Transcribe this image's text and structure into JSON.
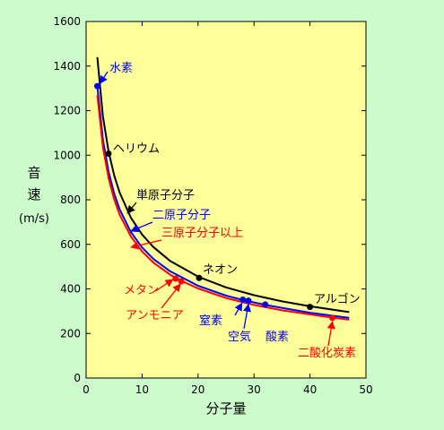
{
  "page": {
    "background": "#ccfccc"
  },
  "chart_data": {
    "type": "line",
    "xlabel": "分子量",
    "ylabel": [
      "音",
      "速",
      "(m/s)"
    ],
    "xlim": [
      0,
      50
    ],
    "ylim": [
      0,
      1600
    ],
    "xticks": [
      0,
      10,
      20,
      30,
      40,
      50
    ],
    "yticks": [
      0,
      200,
      400,
      600,
      800,
      1000,
      1200,
      1400,
      1600
    ],
    "plot_background": "#ffff99",
    "grid": false,
    "series": [
      {
        "name": "単原子分子",
        "color": "#000000",
        "x": [
          2,
          3,
          4,
          5,
          6,
          8,
          10,
          12,
          15,
          20,
          25,
          30,
          35,
          40,
          47
        ],
        "y": [
          1440,
          1175,
          1018,
          911,
          832,
          720,
          644,
          588,
          526,
          455,
          407,
          372,
          344,
          322,
          296
        ]
      },
      {
        "name": "二原子分子",
        "color": "#0000ff",
        "x": [
          2,
          3,
          4,
          5,
          6,
          8,
          10,
          12,
          15,
          20,
          25,
          28,
          32,
          40,
          47
        ],
        "y": [
          1310,
          1070,
          927,
          829,
          757,
          655,
          586,
          535,
          479,
          414,
          370,
          350,
          328,
          293,
          270
        ]
      },
      {
        "name": "三原子分子以上",
        "color": "#ff0000",
        "x": [
          2,
          3,
          4,
          5,
          6,
          8,
          10,
          12,
          15,
          16,
          17,
          20,
          25,
          30,
          35,
          44,
          47
        ],
        "y": [
          1270,
          1037,
          898,
          803,
          733,
          635,
          568,
          518,
          464,
          449,
          436,
          402,
          359,
          328,
          304,
          271,
          262
        ]
      }
    ],
    "points": [
      {
        "label": "水素",
        "x": 2,
        "y": 1310,
        "color": "#0000ff"
      },
      {
        "label": "ヘリウム",
        "x": 4,
        "y": 1007,
        "color": "#000000"
      },
      {
        "label": "ネオン",
        "x": 20.2,
        "y": 449,
        "color": "#000000"
      },
      {
        "label": "アルゴン",
        "x": 40,
        "y": 319,
        "color": "#000000"
      },
      {
        "label": "メタン",
        "x": 16,
        "y": 446,
        "color": "#ff0000"
      },
      {
        "label": "アンモニア",
        "x": 17,
        "y": 434,
        "color": "#ff0000"
      },
      {
        "label": "窒素",
        "x": 28,
        "y": 352,
        "color": "#0000ff"
      },
      {
        "label": "空気",
        "x": 29,
        "y": 347,
        "color": "#0000ff"
      },
      {
        "label": "酸素",
        "x": 32,
        "y": 330,
        "color": "#0000ff"
      },
      {
        "label": "二酸化炭素",
        "x": 44,
        "y": 270,
        "color": "#ff0000"
      }
    ]
  }
}
